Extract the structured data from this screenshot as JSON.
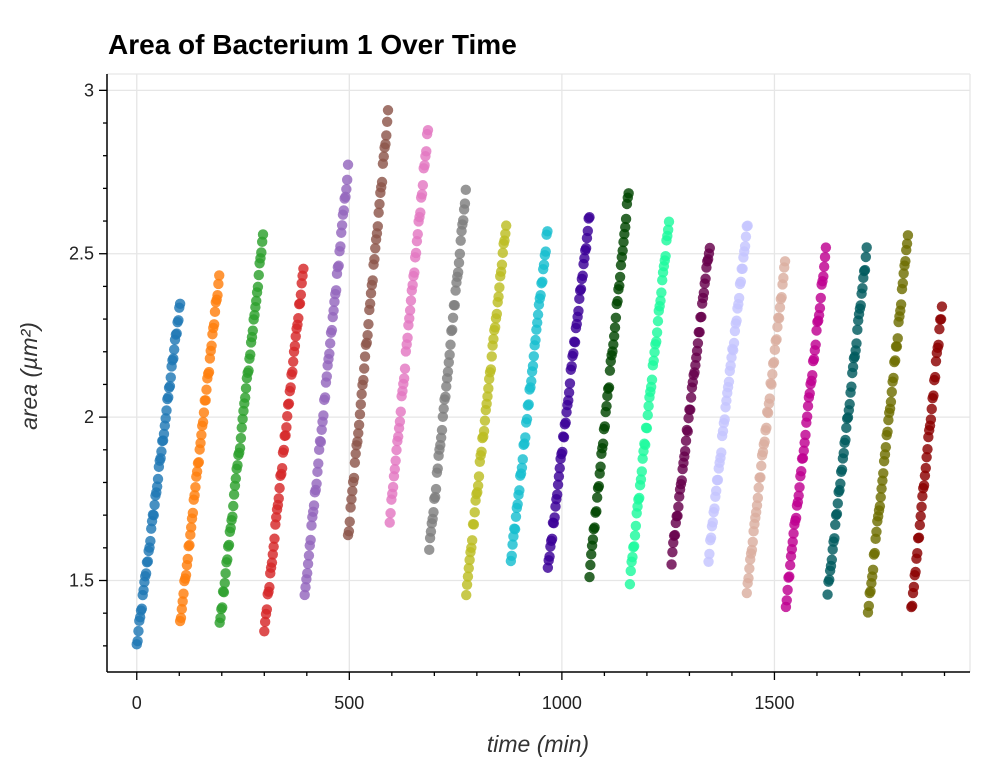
{
  "chart_data": {
    "type": "scatter",
    "title": "Area of Bacterium 1 Over Time",
    "xlabel": "time (min)",
    "ylabel": "area (µm²)",
    "xlim": [
      -70,
      1960
    ],
    "ylim": [
      1.22,
      3.05
    ],
    "x_ticks": [
      0,
      500,
      1000,
      1500
    ],
    "x_tick_labels": [
      "0",
      "500",
      "1000",
      "1500"
    ],
    "y_ticks": [
      1.5,
      2,
      2.5,
      3
    ],
    "y_tick_labels": [
      "1.5",
      "2",
      "2.5",
      "3"
    ],
    "grid": true,
    "legend": "none",
    "point_interval_min": 2,
    "series": [
      {
        "x": [
          0,
          103
        ],
        "y": [
          1.3,
          2.36
        ],
        "color": "#1f77b4"
      },
      {
        "x": [
          102,
          195
        ],
        "y": [
          1.37,
          2.44
        ],
        "color": "#ff7f0e"
      },
      {
        "x": [
          195,
          297
        ],
        "y": [
          1.36,
          2.55
        ],
        "color": "#2ca02c"
      },
      {
        "x": [
          300,
          393
        ],
        "y": [
          1.35,
          2.47
        ],
        "color": "#d62728"
      },
      {
        "x": [
          395,
          497
        ],
        "y": [
          1.45,
          2.76
        ],
        "color": "#9467bd"
      },
      {
        "x": [
          497,
          592
        ],
        "y": [
          1.63,
          2.94
        ],
        "color": "#8c564b"
      },
      {
        "x": [
          595,
          685
        ],
        "y": [
          1.68,
          2.88
        ],
        "color": "#e377c2"
      },
      {
        "x": [
          688,
          775
        ],
        "y": [
          1.59,
          2.7
        ],
        "color": "#7f7f7f"
      },
      {
        "x": [
          775,
          870
        ],
        "y": [
          1.47,
          2.6
        ],
        "color": "#bcbd22"
      },
      {
        "x": [
          880,
          967
        ],
        "y": [
          1.55,
          2.58
        ],
        "color": "#17becf"
      },
      {
        "x": [
          967,
          1065
        ],
        "y": [
          1.53,
          2.62
        ],
        "color": "#3b0097"
      },
      {
        "x": [
          1065,
          1157
        ],
        "y": [
          1.52,
          2.69
        ],
        "color": "#004500"
      },
      {
        "x": [
          1160,
          1253
        ],
        "y": [
          1.5,
          2.61
        ],
        "color": "#1dfa9e"
      },
      {
        "x": [
          1258,
          1348
        ],
        "y": [
          1.56,
          2.53
        ],
        "color": "#67004c"
      },
      {
        "x": [
          1345,
          1437
        ],
        "y": [
          1.57,
          2.6
        ],
        "color": "#c4c4ff"
      },
      {
        "x": [
          1435,
          1525
        ],
        "y": [
          1.47,
          2.47
        ],
        "color": "#dbaea0"
      },
      {
        "x": [
          1527,
          1622
        ],
        "y": [
          1.43,
          2.52
        ],
        "color": "#be0090"
      },
      {
        "x": [
          1625,
          1717
        ],
        "y": [
          1.46,
          2.51
        ],
        "color": "#005a5e"
      },
      {
        "x": [
          1720,
          1815
        ],
        "y": [
          1.4,
          2.56
        ],
        "color": "#6e6e00"
      },
      {
        "x": [
          1822,
          1895
        ],
        "y": [
          1.41,
          2.35
        ],
        "color": "#8b0000"
      }
    ]
  }
}
